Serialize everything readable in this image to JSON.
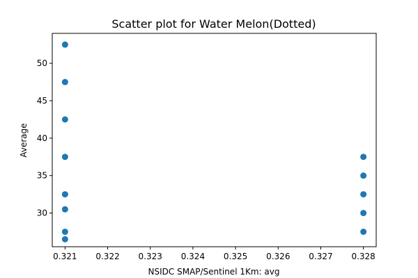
{
  "chart_data": {
    "type": "scatter",
    "title": "Scatter plot for Water Melon(Dotted)",
    "xlabel": "NSIDC SMAP/Sentinel 1Km: avg",
    "ylabel": "Average",
    "xlim": [
      0.3207,
      0.3283
    ],
    "ylim": [
      25.5,
      54.0
    ],
    "x_ticks": [
      0.321,
      0.322,
      0.323,
      0.324,
      0.325,
      0.326,
      0.327,
      0.328
    ],
    "x_tick_labels": [
      "0.321",
      "0.322",
      "0.323",
      "0.324",
      "0.325",
      "0.326",
      "0.327",
      "0.328"
    ],
    "y_ticks": [
      30,
      35,
      40,
      45,
      50
    ],
    "y_tick_labels": [
      "30",
      "35",
      "40",
      "45",
      "50"
    ],
    "grid": false,
    "marker_color": "#1f77b4",
    "series": [
      {
        "x": [
          0.321,
          0.321,
          0.321,
          0.321,
          0.321,
          0.321,
          0.321,
          0.321,
          0.328,
          0.328,
          0.328,
          0.328,
          0.328
        ],
        "y": [
          52.5,
          47.5,
          42.5,
          37.5,
          32.5,
          30.5,
          27.5,
          26.5,
          37.5,
          35.0,
          32.5,
          30.0,
          27.5
        ]
      }
    ]
  }
}
